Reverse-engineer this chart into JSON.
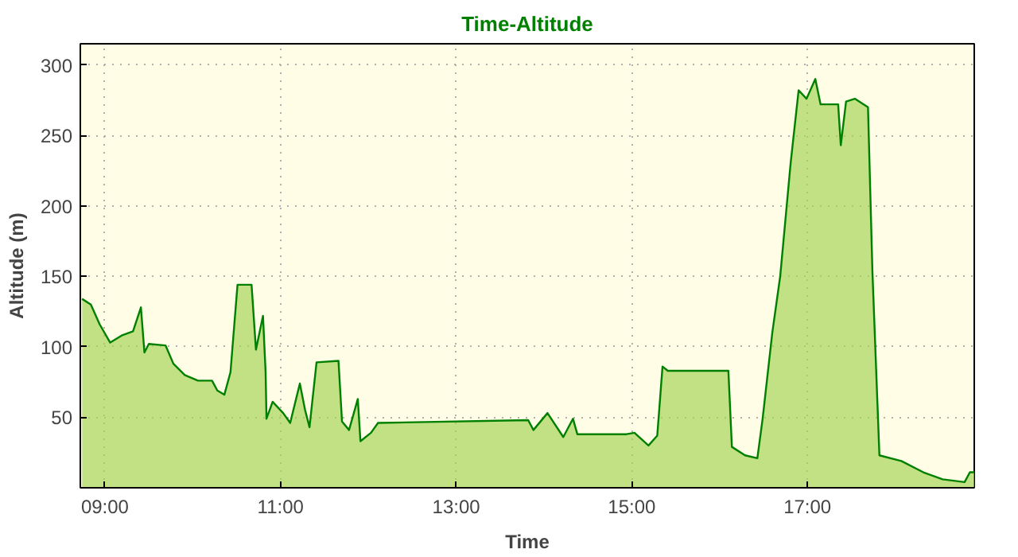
{
  "chart_data": {
    "type": "area",
    "title": "Time-Altitude",
    "xlabel": "Time",
    "ylabel": "Altitude (m)",
    "x": [
      8.74,
      8.84,
      8.94,
      9.06,
      9.19,
      9.32,
      9.41,
      9.45,
      9.5,
      9.69,
      9.78,
      9.91,
      10.06,
      10.22,
      10.28,
      10.36,
      10.43,
      10.51,
      10.67,
      10.72,
      10.8,
      10.83,
      10.84,
      10.91,
      11.03,
      11.11,
      11.22,
      11.28,
      11.33,
      11.41,
      11.66,
      11.7,
      11.78,
      11.88,
      11.91,
      12.03,
      12.11,
      13.82,
      13.88,
      14.04,
      14.22,
      14.33,
      14.38,
      14.94,
      15.03,
      15.19,
      15.29,
      15.35,
      15.41,
      16.1,
      16.14,
      16.29,
      16.43,
      16.49,
      16.6,
      16.69,
      16.81,
      16.9,
      16.99,
      17.09,
      17.15,
      17.35,
      17.38,
      17.44,
      17.54,
      17.69,
      17.74,
      17.82,
      18.07,
      18.32,
      18.54,
      18.79,
      18.85,
      18.9
    ],
    "series": [
      {
        "color": "#008000",
        "values": [
          134,
          130,
          116,
          103,
          108,
          111,
          128,
          96,
          102,
          101,
          88,
          80,
          76,
          76,
          69,
          66,
          82,
          144,
          144,
          98,
          122,
          82,
          49,
          61,
          53,
          46,
          74,
          55,
          43,
          89,
          90,
          47,
          41,
          63,
          33,
          39,
          46,
          48,
          41,
          53,
          36,
          49,
          38,
          38,
          39,
          30,
          37,
          86,
          83,
          83,
          29,
          23,
          21,
          49,
          110,
          150,
          231,
          282,
          276,
          290,
          272,
          272,
          243,
          274,
          276,
          270,
          154,
          23,
          19,
          11,
          6,
          4,
          11,
          11
        ]
      }
    ],
    "xlim": [
      8.72,
      18.9
    ],
    "ylim": [
      0,
      315
    ],
    "xticks": [
      {
        "value": 9,
        "label": "09:00"
      },
      {
        "value": 11,
        "label": "11:00"
      },
      {
        "value": 13,
        "label": "13:00"
      },
      {
        "value": 15,
        "label": "15:00"
      },
      {
        "value": 17,
        "label": "17:00"
      }
    ],
    "yticks": [
      50,
      100,
      150,
      200,
      250,
      300
    ],
    "grid": true
  }
}
